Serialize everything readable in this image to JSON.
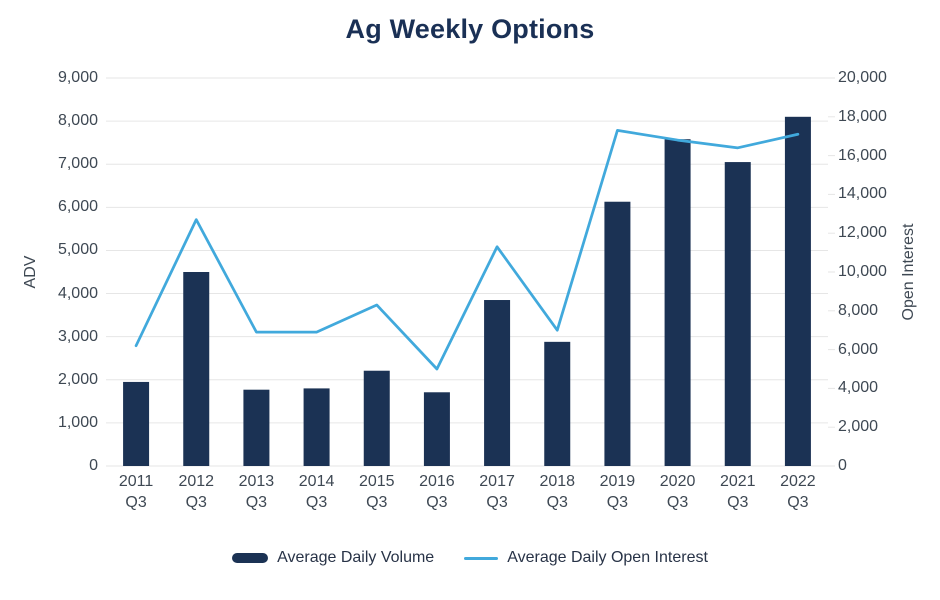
{
  "chart_data": {
    "type": "combo",
    "title": "Ag Weekly Options",
    "categories": [
      "2011 Q3",
      "2012 Q3",
      "2013 Q3",
      "2014 Q3",
      "2015 Q3",
      "2016 Q3",
      "2017 Q3",
      "2018 Q3",
      "2019 Q3",
      "2020 Q3",
      "2021 Q3",
      "2022 Q3"
    ],
    "series": [
      {
        "name": "Average Daily Volume",
        "type": "column",
        "axis": "left",
        "color": "#1b3254",
        "values": [
          1950,
          4500,
          1770,
          1800,
          2210,
          1710,
          3850,
          2880,
          6130,
          7580,
          7050,
          8100
        ]
      },
      {
        "name": "Average Daily Open Interest",
        "type": "line",
        "axis": "right",
        "color": "#41a9dc",
        "values": [
          6200,
          12700,
          6900,
          6900,
          8300,
          5000,
          11300,
          7000,
          17300,
          16800,
          16400,
          17100
        ]
      }
    ],
    "y_left": {
      "label": "ADV",
      "min": 0,
      "max": 9000,
      "tick_interval": 1000,
      "tick_labels": [
        "0",
        "1,000",
        "2,000",
        "3,000",
        "4,000",
        "5,000",
        "6,000",
        "7,000",
        "8,000",
        "9,000"
      ]
    },
    "y_right": {
      "label": "Open Interest",
      "min": 0,
      "max": 20000,
      "tick_interval": 2000,
      "tick_labels": [
        "0",
        "2,000",
        "4,000",
        "6,000",
        "8,000",
        "10,000",
        "12,000",
        "14,000",
        "16,000",
        "18,000",
        "20,000"
      ]
    },
    "grid": "horizontal",
    "legend_position": "bottom"
  },
  "colors": {
    "bar": "#1b3254",
    "line": "#41a9dc",
    "grid": "#e6e6e6",
    "axis_text": "#3e4853",
    "title_text": "#1a3055",
    "legend_text": "#283347",
    "background": "#ffffff"
  }
}
